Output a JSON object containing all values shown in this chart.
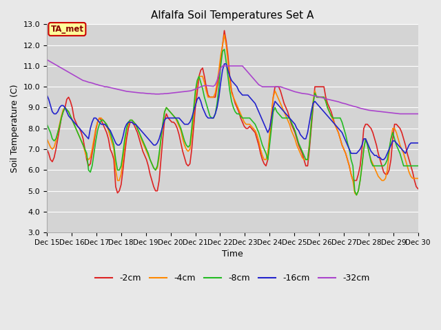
{
  "title": "Alfalfa Soil Temperatures Set A",
  "xlabel": "Time",
  "ylabel": "Soil Temperature (C)",
  "ylim": [
    3.0,
    13.0
  ],
  "yticks": [
    3.0,
    4.0,
    5.0,
    6.0,
    7.0,
    8.0,
    9.0,
    10.0,
    11.0,
    12.0,
    13.0
  ],
  "bg_color": "#e8e8e8",
  "plot_bg": "#d4d4d4",
  "annotation_label": "TA_met",
  "annotation_bg": "#ffff99",
  "annotation_border": "#cc0000",
  "colors": {
    "-2cm": "#dd2222",
    "-4cm": "#ff8800",
    "-8cm": "#22bb22",
    "-16cm": "#2222cc",
    "-32cm": "#aa44cc"
  },
  "x_labels": [
    "Dec 15",
    "Dec 16",
    "Dec 17",
    "Dec 18",
    "Dec 19",
    "Dec 20",
    "Dec 21",
    "Dec 22",
    "Dec 23",
    "Dec 24",
    "Dec 25",
    "Dec 26",
    "Dec 27",
    "Dec 28",
    "Dec 29",
    "Dec 30"
  ],
  "data_2cm": [
    7.0,
    6.8,
    6.5,
    6.4,
    6.6,
    7.0,
    7.5,
    8.0,
    8.5,
    8.8,
    9.0,
    9.4,
    9.5,
    9.3,
    9.0,
    8.5,
    8.3,
    8.1,
    8.0,
    7.8,
    7.5,
    7.0,
    6.5,
    6.2,
    6.3,
    6.8,
    7.3,
    7.9,
    8.3,
    8.5,
    8.4,
    8.2,
    8.0,
    7.8,
    7.5,
    7.0,
    6.8,
    6.5,
    5.2,
    4.9,
    5.0,
    5.3,
    6.0,
    6.8,
    7.5,
    8.0,
    8.3,
    8.3,
    8.2,
    8.0,
    7.8,
    7.5,
    7.2,
    6.9,
    6.7,
    6.5,
    6.2,
    5.8,
    5.5,
    5.2,
    5.0,
    5.0,
    5.5,
    6.5,
    7.5,
    8.4,
    8.7,
    8.5,
    8.4,
    8.3,
    8.3,
    8.2,
    8.0,
    7.7,
    7.3,
    6.9,
    6.6,
    6.3,
    6.2,
    6.3,
    7.0,
    8.0,
    9.0,
    9.7,
    10.5,
    10.8,
    10.9,
    10.5,
    10.0,
    9.6,
    9.5,
    9.5,
    9.5,
    9.5,
    10.0,
    10.5,
    11.2,
    12.0,
    12.7,
    12.2,
    11.5,
    10.5,
    9.8,
    9.5,
    9.2,
    9.0,
    8.8,
    8.5,
    8.3,
    8.1,
    8.0,
    8.0,
    8.1,
    8.0,
    7.9,
    7.8,
    7.5,
    7.2,
    6.8,
    6.5,
    6.3,
    6.2,
    6.5,
    7.5,
    8.5,
    9.5,
    10.0,
    10.0,
    10.0,
    9.8,
    9.5,
    9.2,
    9.0,
    8.8,
    8.5,
    8.2,
    8.0,
    7.8,
    7.5,
    7.2,
    7.0,
    6.8,
    6.5,
    6.2,
    6.2,
    7.0,
    8.0,
    9.0,
    10.0,
    10.0,
    10.0,
    10.0,
    10.0,
    10.0,
    9.5,
    9.2,
    9.0,
    8.8,
    8.5,
    8.2,
    8.0,
    7.8,
    7.5,
    7.2,
    7.0,
    6.8,
    6.5,
    6.2,
    5.8,
    5.5,
    5.5,
    5.5,
    5.8,
    6.2,
    7.0,
    8.0,
    8.2,
    8.2,
    8.1,
    8.0,
    7.8,
    7.5,
    7.2,
    6.8,
    6.5,
    6.2,
    5.9,
    5.8,
    5.8,
    6.0,
    6.5,
    7.5,
    8.2,
    8.2,
    8.1,
    8.0,
    7.8,
    7.5,
    7.2,
    6.8,
    6.5,
    6.2,
    5.9,
    5.5,
    5.2,
    5.1
  ],
  "data_4cm": [
    7.5,
    7.3,
    7.1,
    7.0,
    7.1,
    7.4,
    7.8,
    8.2,
    8.6,
    8.9,
    9.0,
    8.9,
    8.8,
    8.6,
    8.4,
    8.2,
    8.0,
    7.8,
    7.6,
    7.4,
    7.2,
    6.9,
    6.6,
    6.5,
    6.6,
    7.0,
    7.5,
    8.0,
    8.3,
    8.5,
    8.5,
    8.4,
    8.3,
    8.1,
    7.9,
    7.6,
    7.3,
    7.0,
    6.0,
    5.5,
    5.5,
    5.8,
    6.5,
    7.2,
    7.9,
    8.2,
    8.4,
    8.4,
    8.3,
    8.2,
    8.0,
    7.8,
    7.5,
    7.3,
    7.1,
    6.9,
    6.7,
    6.5,
    6.3,
    6.1,
    6.0,
    6.1,
    6.6,
    7.5,
    8.2,
    8.8,
    9.0,
    8.9,
    8.8,
    8.7,
    8.6,
    8.5,
    8.3,
    8.1,
    7.9,
    7.5,
    7.2,
    7.0,
    6.9,
    7.0,
    7.7,
    8.6,
    9.5,
    10.2,
    10.5,
    10.5,
    10.5,
    10.2,
    9.8,
    9.5,
    9.5,
    9.5,
    9.5,
    9.7,
    10.2,
    10.8,
    11.5,
    12.0,
    12.5,
    12.0,
    11.2,
    10.3,
    9.7,
    9.5,
    9.3,
    9.1,
    8.9,
    8.7,
    8.5,
    8.3,
    8.2,
    8.2,
    8.2,
    8.1,
    8.0,
    7.9,
    7.7,
    7.4,
    7.0,
    6.7,
    6.5,
    6.5,
    6.8,
    7.7,
    8.7,
    9.5,
    9.8,
    9.6,
    9.4,
    9.2,
    9.0,
    8.8,
    8.6,
    8.4,
    8.2,
    7.9,
    7.7,
    7.5,
    7.2,
    7.0,
    6.8,
    6.6,
    6.5,
    6.5,
    6.5,
    7.3,
    8.3,
    9.3,
    9.8,
    9.5,
    9.5,
    9.5,
    9.5,
    9.5,
    9.3,
    9.0,
    8.8,
    8.6,
    8.4,
    8.2,
    8.0,
    7.8,
    7.5,
    7.2,
    7.0,
    6.8,
    6.5,
    6.2,
    5.8,
    5.5,
    4.9,
    4.8,
    5.0,
    5.5,
    6.2,
    7.0,
    7.5,
    7.3,
    6.8,
    6.5,
    6.3,
    6.1,
    5.9,
    5.7,
    5.6,
    5.5,
    5.5,
    5.6,
    6.0,
    6.8,
    7.5,
    8.0,
    8.0,
    7.8,
    7.5,
    7.2,
    7.0,
    6.8,
    6.5,
    6.2,
    5.9,
    5.7,
    5.6,
    5.6,
    5.6,
    5.6
  ],
  "data_8cm": [
    8.2,
    8.0,
    7.8,
    7.5,
    7.4,
    7.5,
    7.8,
    8.1,
    8.5,
    8.8,
    9.0,
    8.9,
    8.8,
    8.6,
    8.4,
    8.2,
    8.0,
    7.8,
    7.6,
    7.4,
    7.2,
    7.0,
    6.8,
    6.0,
    5.9,
    6.2,
    6.8,
    7.4,
    7.9,
    8.2,
    8.4,
    8.4,
    8.3,
    8.2,
    8.0,
    7.8,
    7.5,
    7.2,
    6.5,
    6.0,
    6.0,
    6.2,
    6.8,
    7.5,
    8.0,
    8.3,
    8.4,
    8.4,
    8.3,
    8.2,
    8.0,
    7.8,
    7.6,
    7.4,
    7.2,
    7.0,
    6.8,
    6.5,
    6.3,
    6.1,
    6.0,
    6.2,
    6.8,
    7.5,
    8.2,
    8.8,
    9.0,
    8.9,
    8.8,
    8.7,
    8.6,
    8.5,
    8.4,
    8.2,
    8.0,
    7.7,
    7.4,
    7.2,
    7.1,
    7.2,
    8.0,
    8.9,
    9.8,
    10.3,
    10.5,
    10.2,
    9.9,
    9.5,
    9.2,
    8.9,
    8.6,
    8.5,
    8.5,
    8.7,
    9.2,
    10.0,
    11.0,
    11.7,
    11.8,
    11.2,
    10.5,
    9.8,
    9.3,
    9.0,
    8.8,
    8.7,
    8.7,
    8.6,
    8.5,
    8.5,
    8.5,
    8.5,
    8.5,
    8.4,
    8.3,
    8.2,
    8.0,
    7.8,
    7.5,
    7.2,
    7.0,
    6.8,
    6.5,
    7.2,
    8.0,
    8.8,
    9.0,
    8.8,
    8.7,
    8.6,
    8.5,
    8.5,
    8.5,
    8.5,
    8.5,
    8.3,
    8.1,
    7.9,
    7.6,
    7.3,
    7.1,
    6.9,
    6.7,
    6.5,
    6.5,
    7.2,
    8.2,
    9.2,
    9.7,
    9.5,
    9.5,
    9.5,
    9.5,
    9.5,
    9.3,
    9.0,
    8.8,
    8.6,
    8.5,
    8.5,
    8.5,
    8.5,
    8.5,
    8.3,
    8.0,
    7.7,
    7.3,
    7.0,
    6.5,
    6.2,
    5.0,
    4.8,
    5.0,
    5.5,
    6.2,
    7.0,
    7.5,
    7.2,
    6.8,
    6.4,
    6.2,
    6.2,
    6.2,
    6.2,
    6.2,
    6.2,
    6.2,
    6.3,
    6.5,
    7.0,
    7.5,
    7.8,
    7.5,
    7.2,
    7.0,
    6.8,
    6.5,
    6.2,
    6.2,
    6.2,
    6.2,
    6.2,
    6.2,
    6.2,
    6.2,
    6.2
  ],
  "data_16cm": [
    9.6,
    9.4,
    9.1,
    8.8,
    8.7,
    8.7,
    8.8,
    9.0,
    9.1,
    9.1,
    9.0,
    8.8,
    8.6,
    8.5,
    8.4,
    8.3,
    8.2,
    8.1,
    8.0,
    7.9,
    7.8,
    7.7,
    7.6,
    7.5,
    8.0,
    8.3,
    8.5,
    8.5,
    8.4,
    8.3,
    8.2,
    8.2,
    8.2,
    8.1,
    8.0,
    7.9,
    7.7,
    7.5,
    7.3,
    7.2,
    7.2,
    7.3,
    7.6,
    8.0,
    8.2,
    8.3,
    8.3,
    8.3,
    8.2,
    8.2,
    8.1,
    8.0,
    7.9,
    7.8,
    7.7,
    7.6,
    7.5,
    7.4,
    7.3,
    7.2,
    7.2,
    7.3,
    7.5,
    7.8,
    8.1,
    8.4,
    8.5,
    8.5,
    8.5,
    8.5,
    8.5,
    8.5,
    8.5,
    8.5,
    8.4,
    8.3,
    8.2,
    8.2,
    8.2,
    8.3,
    8.5,
    8.8,
    9.1,
    9.4,
    9.5,
    9.3,
    9.0,
    8.8,
    8.6,
    8.5,
    8.5,
    8.5,
    8.5,
    8.7,
    9.0,
    9.5,
    10.2,
    10.8,
    11.1,
    11.1,
    10.8,
    10.5,
    10.3,
    10.2,
    10.1,
    10.0,
    9.8,
    9.7,
    9.6,
    9.6,
    9.6,
    9.6,
    9.5,
    9.4,
    9.3,
    9.2,
    9.0,
    8.8,
    8.6,
    8.4,
    8.2,
    8.0,
    7.8,
    8.0,
    8.5,
    9.0,
    9.3,
    9.2,
    9.1,
    9.0,
    8.9,
    8.8,
    8.7,
    8.6,
    8.5,
    8.4,
    8.3,
    8.2,
    8.0,
    7.9,
    7.7,
    7.6,
    7.5,
    7.5,
    7.8,
    8.3,
    8.8,
    9.2,
    9.3,
    9.2,
    9.1,
    9.0,
    8.9,
    8.8,
    8.7,
    8.6,
    8.5,
    8.4,
    8.3,
    8.2,
    8.1,
    8.0,
    7.9,
    7.8,
    7.6,
    7.4,
    7.2,
    7.0,
    6.8,
    6.8,
    6.8,
    6.8,
    6.9,
    7.0,
    7.2,
    7.5,
    7.5,
    7.3,
    7.1,
    6.9,
    6.8,
    6.7,
    6.7,
    6.6,
    6.6,
    6.5,
    6.5,
    6.6,
    6.8,
    7.0,
    7.2,
    7.4,
    7.4,
    7.3,
    7.2,
    7.1,
    7.0,
    6.9,
    6.8,
    7.0,
    7.2,
    7.3,
    7.3,
    7.3,
    7.3,
    7.3
  ],
  "data_32cm": [
    11.3,
    11.25,
    11.2,
    11.15,
    11.1,
    11.05,
    11.0,
    10.95,
    10.9,
    10.85,
    10.8,
    10.75,
    10.7,
    10.65,
    10.6,
    10.55,
    10.5,
    10.45,
    10.4,
    10.35,
    10.3,
    10.28,
    10.25,
    10.22,
    10.2,
    10.18,
    10.15,
    10.12,
    10.1,
    10.07,
    10.05,
    10.03,
    10.0,
    10.0,
    9.98,
    9.96,
    9.94,
    9.92,
    9.9,
    9.88,
    9.86,
    9.84,
    9.82,
    9.8,
    9.78,
    9.77,
    9.76,
    9.75,
    9.74,
    9.73,
    9.72,
    9.71,
    9.7,
    9.7,
    9.69,
    9.68,
    9.67,
    9.67,
    9.66,
    9.66,
    9.65,
    9.65,
    9.65,
    9.66,
    9.66,
    9.67,
    9.67,
    9.68,
    9.69,
    9.7,
    9.71,
    9.72,
    9.73,
    9.74,
    9.75,
    9.76,
    9.77,
    9.78,
    9.79,
    9.8,
    9.82,
    9.85,
    9.88,
    9.92,
    9.96,
    10.0,
    10.03,
    10.05,
    10.06,
    10.05,
    10.04,
    10.03,
    10.02,
    10.1,
    10.3,
    10.6,
    10.9,
    11.0,
    11.0,
    11.0,
    11.0,
    11.0,
    11.0,
    11.0,
    11.0,
    11.0,
    11.0,
    11.0,
    11.0,
    10.9,
    10.8,
    10.7,
    10.6,
    10.5,
    10.4,
    10.3,
    10.2,
    10.1,
    10.05,
    10.0,
    10.0,
    10.0,
    10.0,
    10.0,
    10.0,
    10.0,
    10.0,
    10.0,
    10.0,
    10.0,
    9.97,
    9.94,
    9.91,
    9.88,
    9.85,
    9.82,
    9.79,
    9.76,
    9.74,
    9.72,
    9.7,
    9.68,
    9.67,
    9.66,
    9.65,
    9.63,
    9.6,
    9.58,
    9.56,
    9.54,
    9.52,
    9.5,
    9.48,
    9.45,
    9.42,
    9.4,
    9.38,
    9.36,
    9.34,
    9.32,
    9.3,
    9.28,
    9.25,
    9.22,
    9.2,
    9.18,
    9.15,
    9.12,
    9.1,
    9.07,
    9.05,
    9.03,
    9.0,
    8.97,
    8.95,
    8.93,
    8.91,
    8.89,
    8.87,
    8.86,
    8.85,
    8.84,
    8.83,
    8.82,
    8.81,
    8.8,
    8.79,
    8.78,
    8.77,
    8.76,
    8.75,
    8.74,
    8.73,
    8.72,
    8.71,
    8.7,
    8.7,
    8.7,
    8.7,
    8.7,
    8.7,
    8.7,
    8.7,
    8.7,
    8.7,
    8.7
  ]
}
